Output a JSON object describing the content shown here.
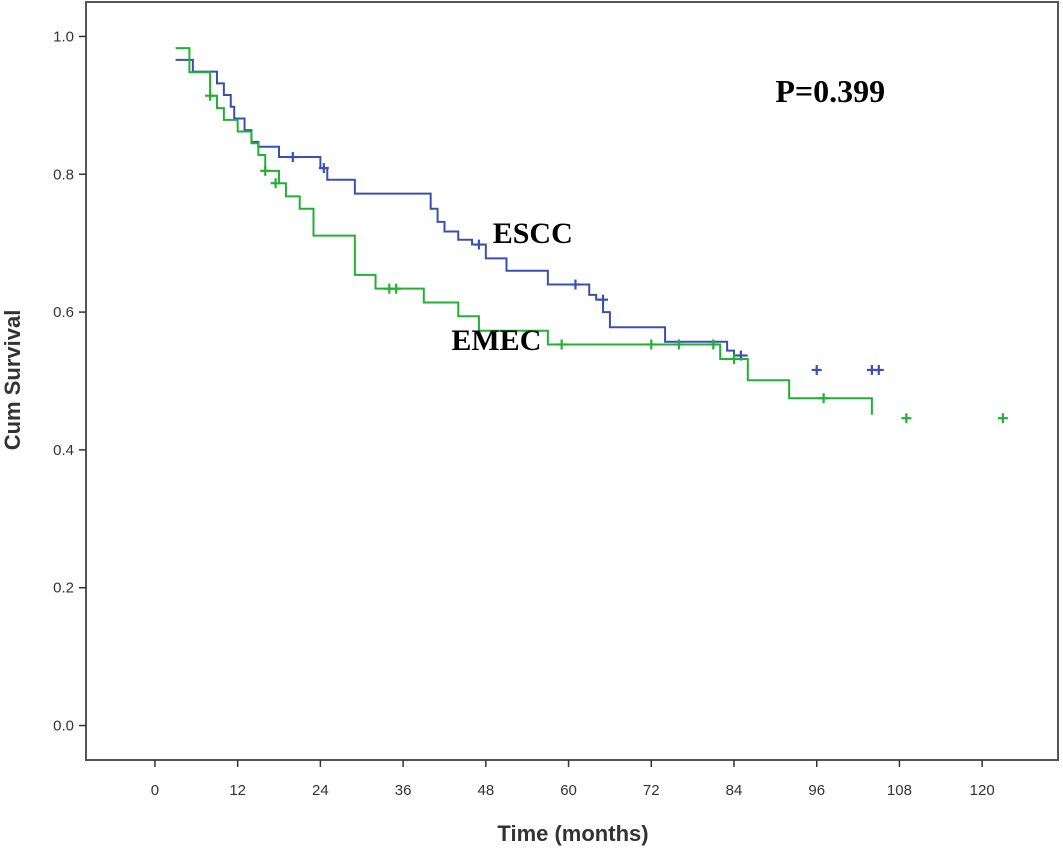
{
  "chart_data": {
    "type": "line",
    "subtype": "kaplan-meier-step",
    "title": "",
    "xlabel": "Time (months)",
    "ylabel": "Cum Survival",
    "xlim": [
      -10,
      131
    ],
    "ylim": [
      -0.05,
      1.05
    ],
    "xticks": [
      0,
      12,
      24,
      36,
      48,
      60,
      72,
      84,
      96,
      108,
      120
    ],
    "yticks": [
      0.0,
      0.2,
      0.4,
      0.6,
      0.8,
      1.0
    ],
    "ytick_labels": [
      "0.0",
      "0.2",
      "0.4",
      "0.6",
      "0.8",
      "1.0"
    ],
    "grid": false,
    "annotation": "P=0.399",
    "series": [
      {
        "name": "ESCC",
        "color": "#3a50b0",
        "steps": [
          [
            3,
            0.966
          ],
          [
            5.5,
            0.949
          ],
          [
            9,
            0.932
          ],
          [
            10,
            0.915
          ],
          [
            11,
            0.898
          ],
          [
            11.5,
            0.881
          ],
          [
            13,
            0.864
          ],
          [
            14,
            0.847
          ],
          [
            15,
            0.84
          ],
          [
            18,
            0.825
          ],
          [
            24,
            0.809
          ],
          [
            25,
            0.792
          ],
          [
            29,
            0.772
          ],
          [
            40,
            0.75
          ],
          [
            41,
            0.731
          ],
          [
            42,
            0.717
          ],
          [
            44,
            0.705
          ],
          [
            46,
            0.698
          ],
          [
            48,
            0.678
          ],
          [
            51,
            0.66
          ],
          [
            57,
            0.64
          ],
          [
            63,
            0.625
          ],
          [
            64,
            0.618
          ],
          [
            65,
            0.6
          ],
          [
            66,
            0.578
          ],
          [
            74,
            0.557
          ],
          [
            83,
            0.544
          ],
          [
            84,
            0.537
          ],
          [
            86,
            0.537
          ]
        ],
        "censored": [
          [
            20,
            0.825
          ],
          [
            24.5,
            0.809
          ],
          [
            47,
            0.698
          ],
          [
            61,
            0.64
          ],
          [
            65,
            0.618
          ],
          [
            85,
            0.537
          ],
          [
            96,
            0.516
          ],
          [
            104,
            0.516
          ],
          [
            105,
            0.516
          ]
        ]
      },
      {
        "name": "EMEC",
        "color": "#22b035",
        "steps": [
          [
            3,
            0.983
          ],
          [
            5,
            0.948
          ],
          [
            8,
            0.914
          ],
          [
            9,
            0.896
          ],
          [
            10,
            0.879
          ],
          [
            12,
            0.862
          ],
          [
            14,
            0.845
          ],
          [
            15,
            0.828
          ],
          [
            16,
            0.805
          ],
          [
            18,
            0.787
          ],
          [
            19,
            0.768
          ],
          [
            21,
            0.75
          ],
          [
            23,
            0.711
          ],
          [
            29,
            0.654
          ],
          [
            32,
            0.634
          ],
          [
            39,
            0.614
          ],
          [
            44,
            0.594
          ],
          [
            47,
            0.573
          ],
          [
            57,
            0.553
          ],
          [
            82,
            0.532
          ],
          [
            86,
            0.501
          ],
          [
            92,
            0.475
          ],
          [
            104,
            0.451
          ]
        ],
        "censored": [
          [
            8,
            0.914
          ],
          [
            16,
            0.805
          ],
          [
            17.5,
            0.787
          ],
          [
            34,
            0.634
          ],
          [
            35,
            0.634
          ],
          [
            59,
            0.553
          ],
          [
            72,
            0.553
          ],
          [
            76,
            0.553
          ],
          [
            81,
            0.553
          ],
          [
            84,
            0.532
          ],
          [
            97,
            0.475
          ],
          [
            109,
            0.446
          ],
          [
            123,
            0.446
          ]
        ]
      }
    ],
    "series_labels": [
      {
        "text": "ESCC",
        "x": 49,
        "y": 0.7
      },
      {
        "text": "EMEC",
        "x": 43,
        "y": 0.545
      }
    ],
    "annotation_position": {
      "x": 90,
      "y": 0.905
    }
  }
}
